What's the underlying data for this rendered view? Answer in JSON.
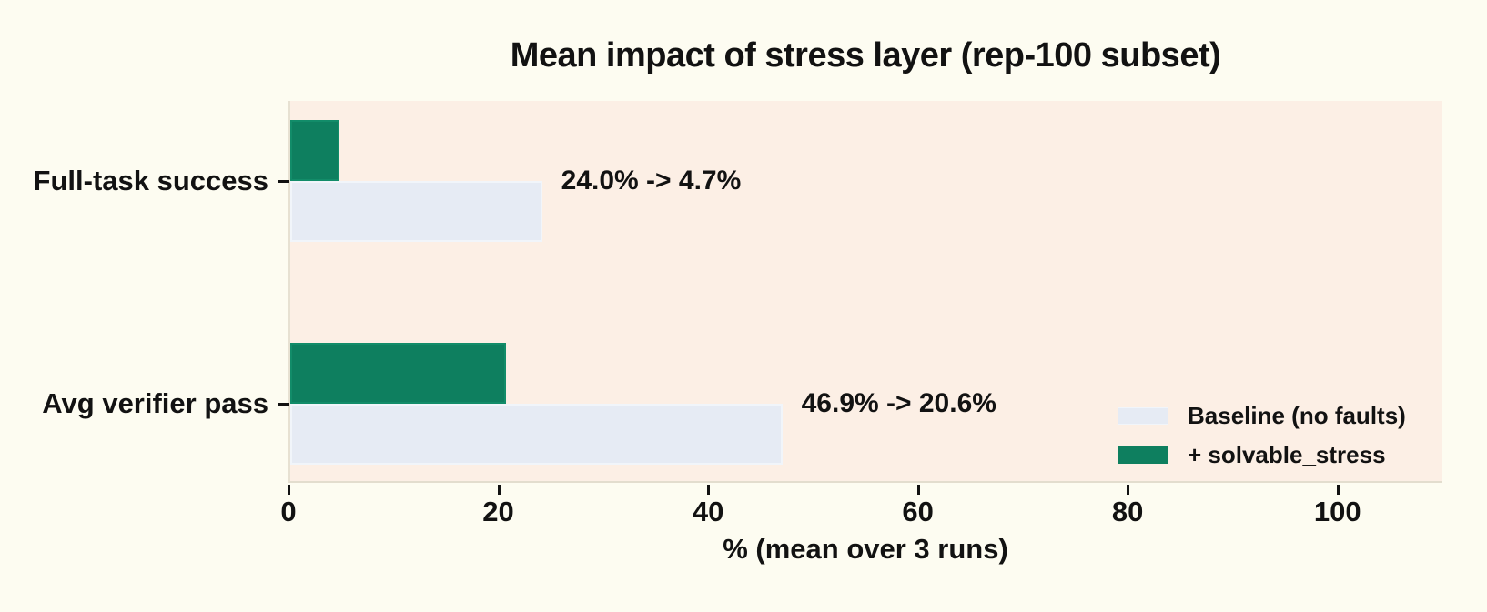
{
  "chart_data": {
    "type": "bar",
    "orientation": "horizontal",
    "title": "Mean impact of stress layer (rep-100 subset)",
    "xlabel": "% (mean over 3 runs)",
    "categories": [
      "Full-task success",
      "Avg verifier pass"
    ],
    "series": [
      {
        "name": "Baseline (no faults)",
        "color": "#E6EBF4",
        "values": [
          24.0,
          46.9
        ]
      },
      {
        "name": "+ solvable_stress",
        "color": "#0E7F5F",
        "values": [
          4.7,
          20.6
        ]
      }
    ],
    "annotations": [
      "24.0% -> 4.7%",
      "46.9% -> 20.6%"
    ],
    "x_ticks": [
      "0",
      "20",
      "40",
      "60",
      "80",
      "100"
    ],
    "x_tick_values": [
      0,
      20,
      40,
      60,
      80,
      100
    ],
    "xlim": [
      0,
      110
    ],
    "grid": false,
    "legend_position": "lower right",
    "colors": {
      "page_background": "#FDFCF1",
      "plot_background": "#FCEFE5",
      "baseline_bar": "#E6EBF4",
      "stress_bar": "#0E7F5F",
      "spine": "#E6E0D1",
      "text": "#121212"
    }
  }
}
